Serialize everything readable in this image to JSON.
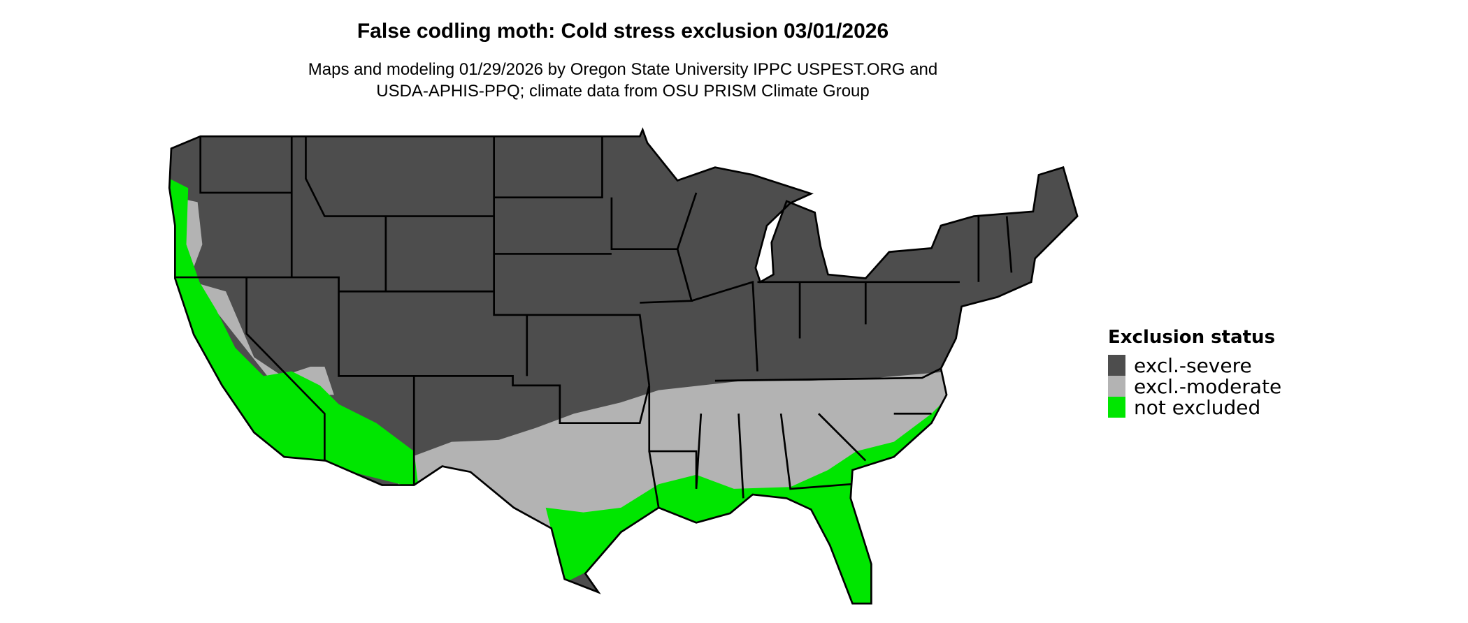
{
  "title": "False codling moth: Cold stress exclusion 03/01/2026",
  "subtitle_lines": [
    "Maps and modeling 01/29/2026 by Oregon State University IPPC USPEST.ORG and",
    "USDA-APHIS-PPQ; climate data from OSU PRISM Climate Group"
  ],
  "legend": {
    "title": "Exclusion status",
    "items": [
      {
        "label": "excl.-severe",
        "color": "#4d4d4d"
      },
      {
        "label": "excl.-moderate",
        "color": "#b3b3b3"
      },
      {
        "label": "not excluded",
        "color": "#00e600"
      }
    ]
  }
}
